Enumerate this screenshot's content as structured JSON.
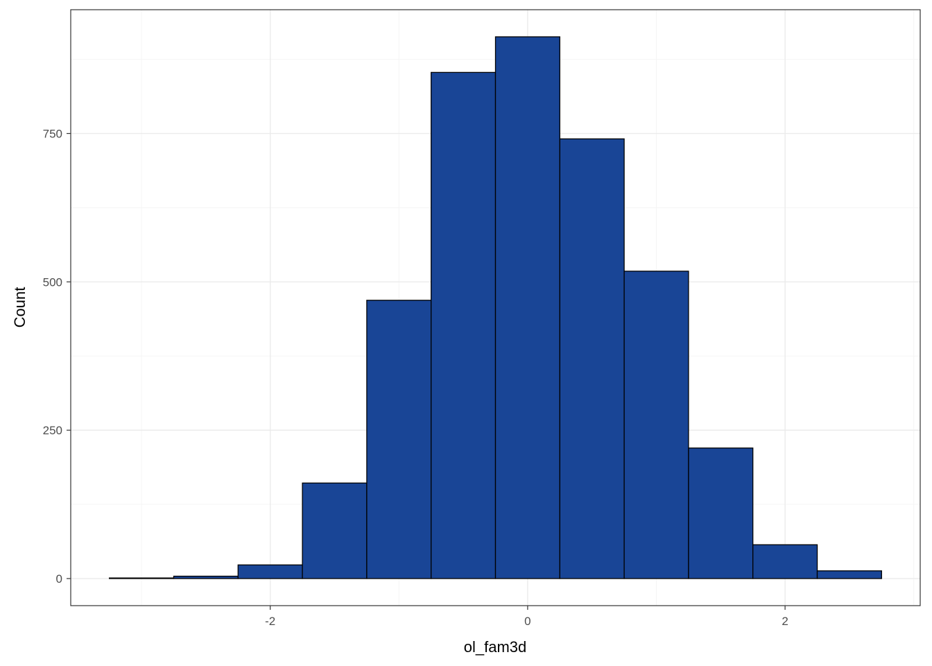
{
  "chart_data": {
    "type": "bar",
    "subtype": "histogram",
    "title": "",
    "xlabel": "ol_fam3d",
    "ylabel": "Count",
    "bin_width": 0.5,
    "bins": [
      {
        "x0": -3.25,
        "x1": -2.75,
        "count": 1
      },
      {
        "x0": -2.75,
        "x1": -2.25,
        "count": 4
      },
      {
        "x0": -2.25,
        "x1": -1.75,
        "count": 23
      },
      {
        "x0": -1.75,
        "x1": -1.25,
        "count": 161
      },
      {
        "x0": -1.25,
        "x1": -0.75,
        "count": 469
      },
      {
        "x0": -0.75,
        "x1": -0.25,
        "count": 853
      },
      {
        "x0": -0.25,
        "x1": 0.25,
        "count": 913
      },
      {
        "x0": 0.25,
        "x1": 0.75,
        "count": 741
      },
      {
        "x0": 0.75,
        "x1": 1.25,
        "count": 518
      },
      {
        "x0": 1.25,
        "x1": 1.75,
        "count": 220
      },
      {
        "x0": 1.75,
        "x1": 2.25,
        "count": 57
      },
      {
        "x0": 2.25,
        "x1": 2.75,
        "count": 13
      }
    ],
    "xlim": [
      -3.55,
      3.05
    ],
    "ylim": [
      -45.65,
      958.65
    ],
    "x_ticks": [
      -2,
      0,
      2
    ],
    "x_tick_labels": [
      "-2",
      "0",
      "2"
    ],
    "y_ticks": [
      0,
      250,
      500,
      750
    ],
    "y_tick_labels": [
      "0",
      "250",
      "500",
      "750"
    ],
    "x_minor_grid": [
      -3,
      -1,
      1,
      3
    ],
    "y_minor_grid": [
      125,
      375,
      625,
      875
    ],
    "grid": true,
    "legend": "none",
    "colors": {
      "bar_fill": "#194596",
      "bar_stroke": "#000000",
      "grid_major": "#ebebeb",
      "grid_minor": "#f5f5f5",
      "panel_border": "#333333",
      "tick_text": "#4d4d4d"
    }
  }
}
